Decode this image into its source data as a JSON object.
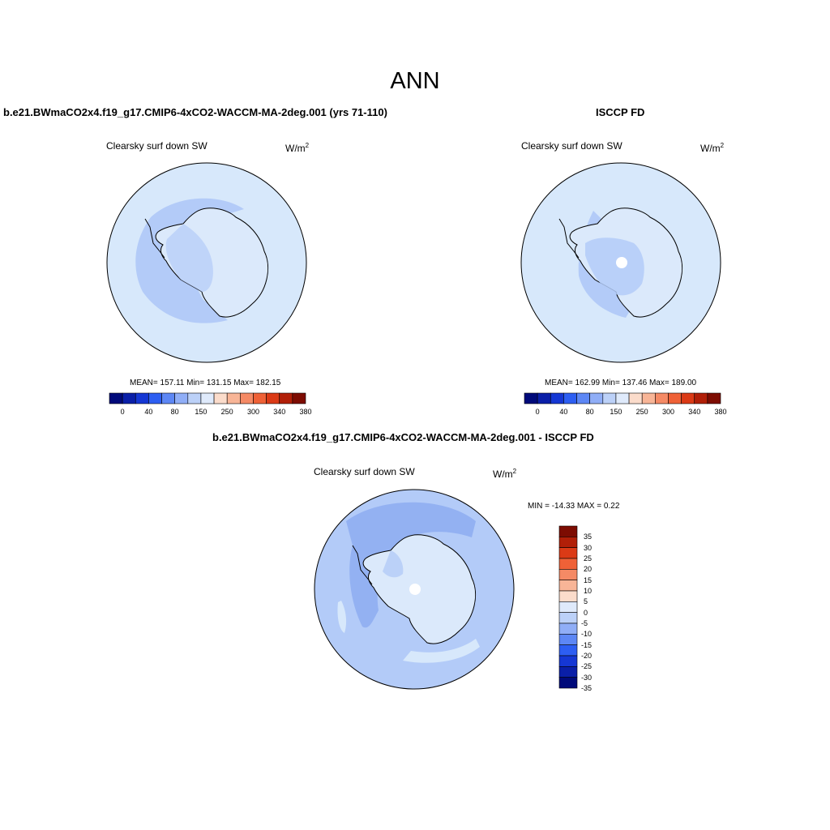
{
  "main_title": "ANN",
  "panels": [
    {
      "title": "b.e21.BWmaCO2x4.f19_g17.CMIP6-4xCO2-WACCM-MA-2deg.001 (yrs 71-110)",
      "variable": "Clearsky surf down SW",
      "units": "W/m",
      "units_exp": "2",
      "stats": "MEAN= 157.11  Min= 131.15  Max= 182.15"
    },
    {
      "title": "ISCCP FD",
      "variable": "Clearsky surf down SW",
      "units": "W/m",
      "units_exp": "2",
      "stats": "MEAN= 162.99  Min= 137.46  Max= 189.00"
    },
    {
      "title": "b.e21.BWmaCO2x4.f19_g17.CMIP6-4xCO2-WACCM-MA-2deg.001 - ISCCP FD",
      "variable": "Clearsky surf down SW",
      "units": "W/m",
      "units_exp": "2",
      "stats": "MIN = -14.33 MAX =   0.22"
    }
  ],
  "colorbar_abs": {
    "colors": [
      "#000a7a",
      "#0a1fa8",
      "#1537d4",
      "#2d5ef2",
      "#5d87f5",
      "#90aef7",
      "#bcd1f8",
      "#dfeafb",
      "#fbdccb",
      "#f8b597",
      "#f58a65",
      "#ef6137",
      "#db3a16",
      "#b11f08",
      "#7d0c02"
    ],
    "ticks": [
      "0",
      "40",
      "80",
      "150",
      "250",
      "300",
      "340",
      "380"
    ]
  },
  "colorbar_diff": {
    "colors": [
      "#000a7a",
      "#0a1fa8",
      "#1537d4",
      "#2d5ef2",
      "#5d87f5",
      "#90aef7",
      "#bcd1f8",
      "#dfeafb",
      "#fbdccb",
      "#f8b597",
      "#f58a65",
      "#ef6137",
      "#db3a16",
      "#b11f08",
      "#7d0c02"
    ],
    "labels": [
      "35",
      "30",
      "25",
      "20",
      "15",
      "10",
      "5",
      "0",
      "-5",
      "-10",
      "-15",
      "-20",
      "-25",
      "-30",
      "-35"
    ]
  },
  "map_colors": {
    "ocean_light": "#d7e8fb",
    "ocean_mid": "#b3cbf8",
    "ocean_dark": "#93b1f2",
    "land_light": "#dbe9fb",
    "white": "#ffffff"
  }
}
